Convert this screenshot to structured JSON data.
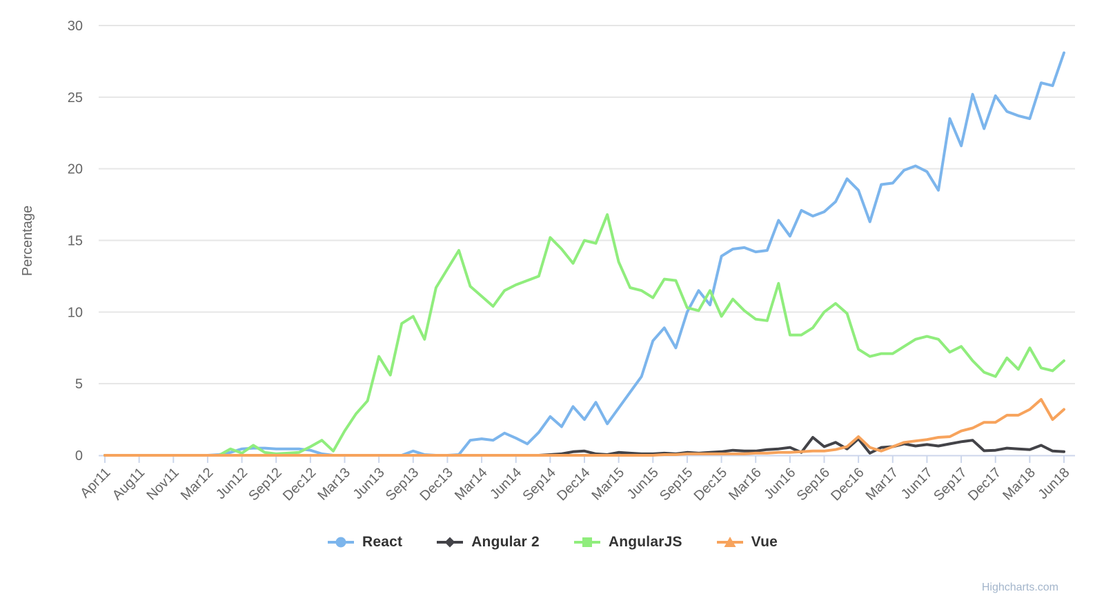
{
  "chart_data": {
    "type": "line",
    "title": "",
    "xlabel": "",
    "ylabel": "Percentage",
    "credits": "Highcharts.com",
    "grid": true,
    "legend_position": "bottom-center",
    "ylim": [
      0,
      30
    ],
    "y_ticks": [
      0,
      5,
      10,
      15,
      20,
      25,
      30
    ],
    "x_unit": "month",
    "x_range": "Apr 2011 - Jun 2018",
    "x_tick_labels": [
      "Apr11",
      "Aug11",
      "Nov11",
      "Mar12",
      "Jun12",
      "Sep12",
      "Dec12",
      "Mar13",
      "Jun13",
      "Sep13",
      "Dec13",
      "Mar14",
      "Jun14",
      "Sep14",
      "Dec14",
      "Mar15",
      "Jun15",
      "Sep15",
      "Dec15",
      "Mar16",
      "Jun16",
      "Sep16",
      "Dec16",
      "Mar17",
      "Jun17",
      "Sep17",
      "Dec17",
      "Mar18",
      "Jun18"
    ],
    "x_tick_month_index": [
      0,
      4,
      7,
      11,
      14,
      17,
      20,
      23,
      26,
      29,
      32,
      35,
      38,
      41,
      44,
      47,
      50,
      53,
      56,
      59,
      62,
      65,
      68,
      71,
      74,
      77,
      80,
      83,
      86
    ],
    "x": [
      "Apr11",
      "May11",
      "Jun11",
      "Jul11",
      "Aug11",
      "Sep11",
      "Oct11",
      "Nov11",
      "Dec11",
      "Jan12",
      "Feb12",
      "Mar12",
      "Apr12",
      "May12",
      "Jun12",
      "Jul12",
      "Aug12",
      "Sep12",
      "Oct12",
      "Nov12",
      "Dec12",
      "Jan13",
      "Feb13",
      "Mar13",
      "Apr13",
      "May13",
      "Jun13",
      "Jul13",
      "Aug13",
      "Sep13",
      "Oct13",
      "Nov13",
      "Dec13",
      "Jan14",
      "Feb14",
      "Mar14",
      "Apr14",
      "May14",
      "Jun14",
      "Jul14",
      "Aug14",
      "Sep14",
      "Oct14",
      "Nov14",
      "Dec14",
      "Jan15",
      "Feb15",
      "Mar15",
      "Apr15",
      "May15",
      "Jun15",
      "Jul15",
      "Aug15",
      "Sep15",
      "Oct15",
      "Nov15",
      "Dec15",
      "Jan16",
      "Feb16",
      "Mar16",
      "Apr16",
      "May16",
      "Jun16",
      "Jul16",
      "Aug16",
      "Sep16",
      "Oct16",
      "Nov16",
      "Dec16",
      "Jan17",
      "Feb17",
      "Mar17",
      "Apr17",
      "May17",
      "Jun17",
      "Jul17",
      "Aug17",
      "Sep17",
      "Oct17",
      "Nov17",
      "Dec17",
      "Jan18",
      "Feb18",
      "Mar18",
      "Apr18",
      "May18",
      "Jun18"
    ],
    "series": [
      {
        "name": "React",
        "color": "#7cb5ec",
        "marker": "circle",
        "values": [
          0,
          0,
          0,
          0,
          0,
          0,
          0,
          0,
          0,
          0,
          0,
          0,
          0.05,
          0.2,
          0.45,
          0.5,
          0.5,
          0.45,
          0.45,
          0.45,
          0.35,
          0.1,
          0,
          0,
          0,
          0,
          0,
          0,
          0,
          0.3,
          0.05,
          0,
          0,
          0.05,
          1.05,
          1.15,
          1.05,
          1.55,
          1.2,
          0.8,
          1.6,
          2.7,
          2.0,
          3.4,
          2.5,
          3.7,
          2.2,
          3.3,
          4.4,
          5.5,
          8.0,
          8.9,
          7.5,
          10.0,
          11.5,
          10.5,
          13.9,
          14.4,
          14.5,
          14.2,
          14.3,
          16.4,
          15.3,
          17.1,
          16.7,
          17.0,
          17.7,
          19.3,
          18.5,
          16.3,
          18.9,
          19.0,
          19.9,
          20.2,
          19.8,
          18.5,
          23.5,
          21.6,
          25.2,
          22.8,
          25.1,
          24.0,
          23.7,
          23.5,
          26.0,
          25.8,
          28.1
        ]
      },
      {
        "name": "Angular 2",
        "color": "#434348",
        "marker": "diamond",
        "values": [
          0,
          0,
          0,
          0,
          0,
          0,
          0,
          0,
          0,
          0,
          0,
          0,
          0,
          0,
          0,
          0,
          0,
          0,
          0,
          0,
          0,
          0,
          0,
          0,
          0,
          0,
          0,
          0,
          0,
          0,
          0,
          0,
          0,
          0,
          0,
          0,
          0,
          0,
          0,
          0,
          0,
          0.05,
          0.1,
          0.25,
          0.3,
          0.1,
          0.05,
          0.2,
          0.15,
          0.1,
          0.1,
          0.15,
          0.1,
          0.2,
          0.15,
          0.2,
          0.25,
          0.35,
          0.3,
          0.3,
          0.4,
          0.45,
          0.55,
          0.2,
          1.25,
          0.6,
          0.9,
          0.45,
          1.15,
          0.15,
          0.55,
          0.6,
          0.8,
          0.65,
          0.75,
          0.65,
          0.8,
          0.95,
          1.05,
          0.32,
          0.35,
          0.5,
          0.45,
          0.4,
          0.7,
          0.3,
          0.25
        ]
      },
      {
        "name": "AngularJS",
        "color": "#90ed7d",
        "marker": "square",
        "values": [
          0,
          0,
          0,
          0,
          0,
          0,
          0,
          0,
          0,
          0,
          0,
          0,
          0,
          0.45,
          0.15,
          0.7,
          0.2,
          0.1,
          0.15,
          0.2,
          0.6,
          1.05,
          0.3,
          1.7,
          2.9,
          3.8,
          6.9,
          5.6,
          9.2,
          9.7,
          8.1,
          11.7,
          13.0,
          14.3,
          11.8,
          11.1,
          10.4,
          11.5,
          11.9,
          12.2,
          12.5,
          15.2,
          14.4,
          13.4,
          15.0,
          14.8,
          16.8,
          13.5,
          11.7,
          11.5,
          11.0,
          12.3,
          12.2,
          10.3,
          10.1,
          11.5,
          9.7,
          10.9,
          10.1,
          9.5,
          9.4,
          12.0,
          8.4,
          8.4,
          8.9,
          10.0,
          10.6,
          9.9,
          7.4,
          6.9,
          7.1,
          7.1,
          7.6,
          8.1,
          8.3,
          8.1,
          7.2,
          7.6,
          6.6,
          5.8,
          5.5,
          6.8,
          6.0,
          7.5,
          6.1,
          5.9,
          6.6
        ]
      },
      {
        "name": "Vue",
        "color": "#f7a35c",
        "marker": "triangle",
        "values": [
          0,
          0,
          0,
          0,
          0,
          0,
          0,
          0,
          0,
          0,
          0,
          0,
          0,
          0,
          0,
          0,
          0,
          0,
          0,
          0,
          0,
          0,
          0,
          0,
          0,
          0,
          0,
          0,
          0,
          0,
          0,
          0,
          0,
          0,
          0,
          0,
          0,
          0,
          0,
          0,
          0,
          0,
          0,
          0,
          0,
          0,
          0,
          0,
          0,
          0,
          0,
          0.05,
          0.05,
          0.1,
          0.1,
          0.1,
          0.1,
          0.1,
          0.1,
          0.15,
          0.15,
          0.2,
          0.2,
          0.25,
          0.3,
          0.3,
          0.4,
          0.6,
          1.3,
          0.55,
          0.3,
          0.6,
          0.9,
          1.0,
          1.1,
          1.25,
          1.3,
          1.7,
          1.9,
          2.3,
          2.3,
          2.8,
          2.8,
          3.2,
          3.9,
          2.5,
          3.2
        ]
      }
    ],
    "colors": {
      "background": "#ffffff",
      "grid_line": "#e6e6e6",
      "axis_line": "#ccd6eb",
      "axis_text": "#666666",
      "legend_text": "#333333",
      "credits_text": "#a3b5cb"
    }
  }
}
